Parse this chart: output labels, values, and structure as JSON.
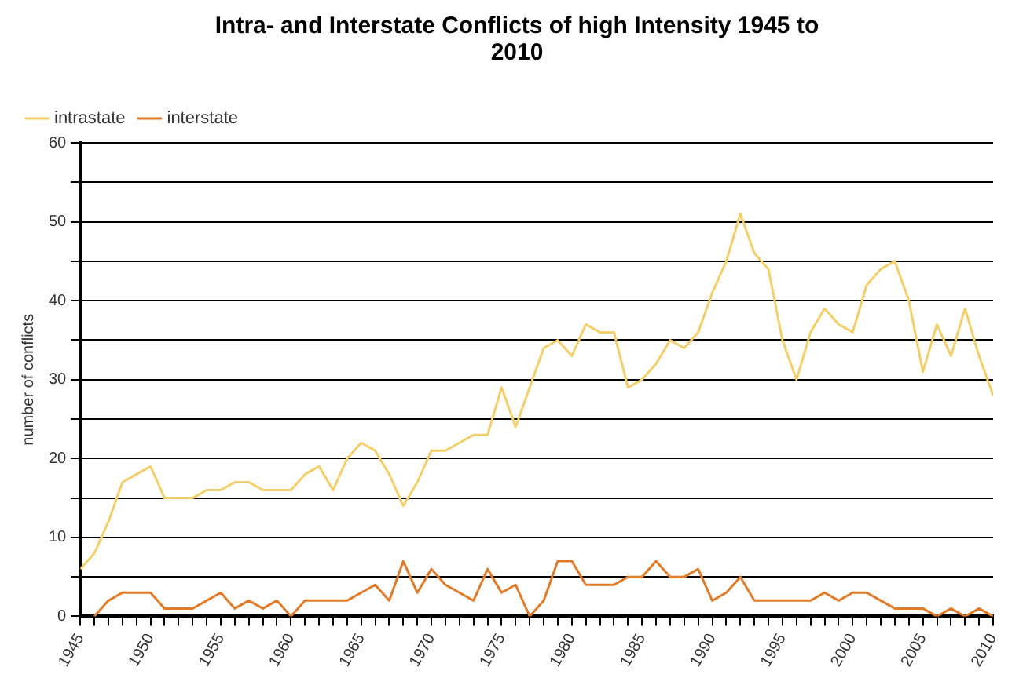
{
  "chart_data": {
    "type": "line",
    "title": "Intra- and Interstate Conflicts of high Intensity 1945 to 2010",
    "ylabel": "number of conflicts",
    "x": [
      1945,
      1946,
      1947,
      1948,
      1949,
      1950,
      1951,
      1952,
      1953,
      1954,
      1955,
      1956,
      1957,
      1958,
      1959,
      1960,
      1961,
      1962,
      1963,
      1964,
      1965,
      1966,
      1967,
      1968,
      1969,
      1970,
      1971,
      1972,
      1973,
      1974,
      1975,
      1976,
      1977,
      1978,
      1979,
      1980,
      1981,
      1982,
      1983,
      1984,
      1985,
      1986,
      1987,
      1988,
      1989,
      1990,
      1991,
      1992,
      1993,
      1994,
      1995,
      1996,
      1997,
      1998,
      1999,
      2000,
      2001,
      2002,
      2003,
      2004,
      2005,
      2006,
      2007,
      2008,
      2009,
      2010
    ],
    "series": [
      {
        "name": "intrastate",
        "color": "#f2cf6a",
        "values": [
          6,
          8,
          12,
          17,
          18,
          19,
          15,
          15,
          15,
          16,
          16,
          17,
          17,
          16,
          16,
          16,
          18,
          19,
          16,
          20,
          22,
          21,
          18,
          14,
          17,
          21,
          21,
          22,
          23,
          23,
          29,
          24,
          29,
          34,
          35,
          33,
          37,
          36,
          36,
          29,
          30,
          32,
          35,
          34,
          36,
          41,
          45,
          51,
          46,
          44,
          35,
          30,
          36,
          39,
          37,
          36,
          42,
          44,
          45,
          40,
          31,
          37,
          33,
          39,
          33,
          28
        ]
      },
      {
        "name": "interstate",
        "color": "#e07b2a",
        "values": [
          null,
          0,
          2,
          3,
          3,
          3,
          1,
          1,
          1,
          2,
          3,
          1,
          2,
          1,
          2,
          0,
          2,
          2,
          2,
          2,
          3,
          4,
          2,
          7,
          3,
          6,
          4,
          3,
          2,
          6,
          3,
          4,
          0,
          2,
          7,
          7,
          4,
          4,
          4,
          5,
          5,
          7,
          5,
          5,
          6,
          2,
          3,
          5,
          2,
          2,
          2,
          2,
          2,
          3,
          2,
          3,
          3,
          2,
          1,
          1,
          1,
          0,
          1,
          0,
          1,
          0
        ]
      }
    ],
    "xlim": [
      1945,
      2010
    ],
    "xticks": [
      1945,
      {
        "value": 1946,
        "label": null
      },
      {
        "value": 1947,
        "label": null
      },
      {
        "value": 1948,
        "label": null
      },
      {
        "value": 1949,
        "label": null
      },
      1950,
      {
        "value": 1951,
        "label": null
      },
      {
        "value": 1952,
        "label": null
      },
      {
        "value": 1953,
        "label": null
      },
      {
        "value": 1954,
        "label": null
      },
      1955,
      {
        "value": 1956,
        "label": null
      },
      {
        "value": 1957,
        "label": null
      },
      {
        "value": 1958,
        "label": null
      },
      {
        "value": 1959,
        "label": null
      },
      1960,
      {
        "value": 1961,
        "label": null
      },
      {
        "value": 1962,
        "label": null
      },
      {
        "value": 1963,
        "label": null
      },
      {
        "value": 1964,
        "label": null
      },
      1965,
      {
        "value": 1966,
        "label": null
      },
      {
        "value": 1967,
        "label": null
      },
      {
        "value": 1968,
        "label": null
      },
      {
        "value": 1969,
        "label": null
      },
      1970,
      {
        "value": 1971,
        "label": null
      },
      {
        "value": 1972,
        "label": null
      },
      {
        "value": 1973,
        "label": null
      },
      {
        "value": 1974,
        "label": null
      },
      1975,
      {
        "value": 1976,
        "label": null
      },
      {
        "value": 1977,
        "label": null
      },
      {
        "value": 1978,
        "label": null
      },
      {
        "value": 1979,
        "label": null
      },
      1980,
      {
        "value": 1981,
        "label": null
      },
      {
        "value": 1982,
        "label": null
      },
      {
        "value": 1983,
        "label": null
      },
      {
        "value": 1984,
        "label": null
      },
      1985,
      {
        "value": 1986,
        "label": null
      },
      {
        "value": 1987,
        "label": null
      },
      {
        "value": 1988,
        "label": null
      },
      {
        "value": 1989,
        "label": null
      },
      1990,
      {
        "value": 1991,
        "label": null
      },
      {
        "value": 1992,
        "label": null
      },
      {
        "value": 1993,
        "label": null
      },
      {
        "value": 1994,
        "label": null
      },
      1995,
      {
        "value": 1996,
        "label": null
      },
      {
        "value": 1997,
        "label": null
      },
      {
        "value": 1998,
        "label": null
      },
      {
        "value": 1999,
        "label": null
      },
      2000,
      {
        "value": 2001,
        "label": null
      },
      {
        "value": 2002,
        "label": null
      },
      {
        "value": 2003,
        "label": null
      },
      {
        "value": 2004,
        "label": null
      },
      2005,
      {
        "value": 2006,
        "label": null
      },
      {
        "value": 2007,
        "label": null
      },
      {
        "value": 2008,
        "label": null
      },
      {
        "value": 2009,
        "label": null
      },
      2010
    ],
    "ylim": [
      0,
      60
    ],
    "yticks": [
      0,
      {
        "value": 5,
        "label": null
      },
      10,
      {
        "value": 15,
        "label": null
      },
      20,
      {
        "value": 25,
        "label": null
      },
      30,
      {
        "value": 35,
        "label": null
      },
      40,
      {
        "value": 45,
        "label": null
      },
      50,
      {
        "value": 55,
        "label": null
      },
      60
    ],
    "grid": "y",
    "legend": "top left",
    "marker": "none",
    "line_style": "solid"
  }
}
